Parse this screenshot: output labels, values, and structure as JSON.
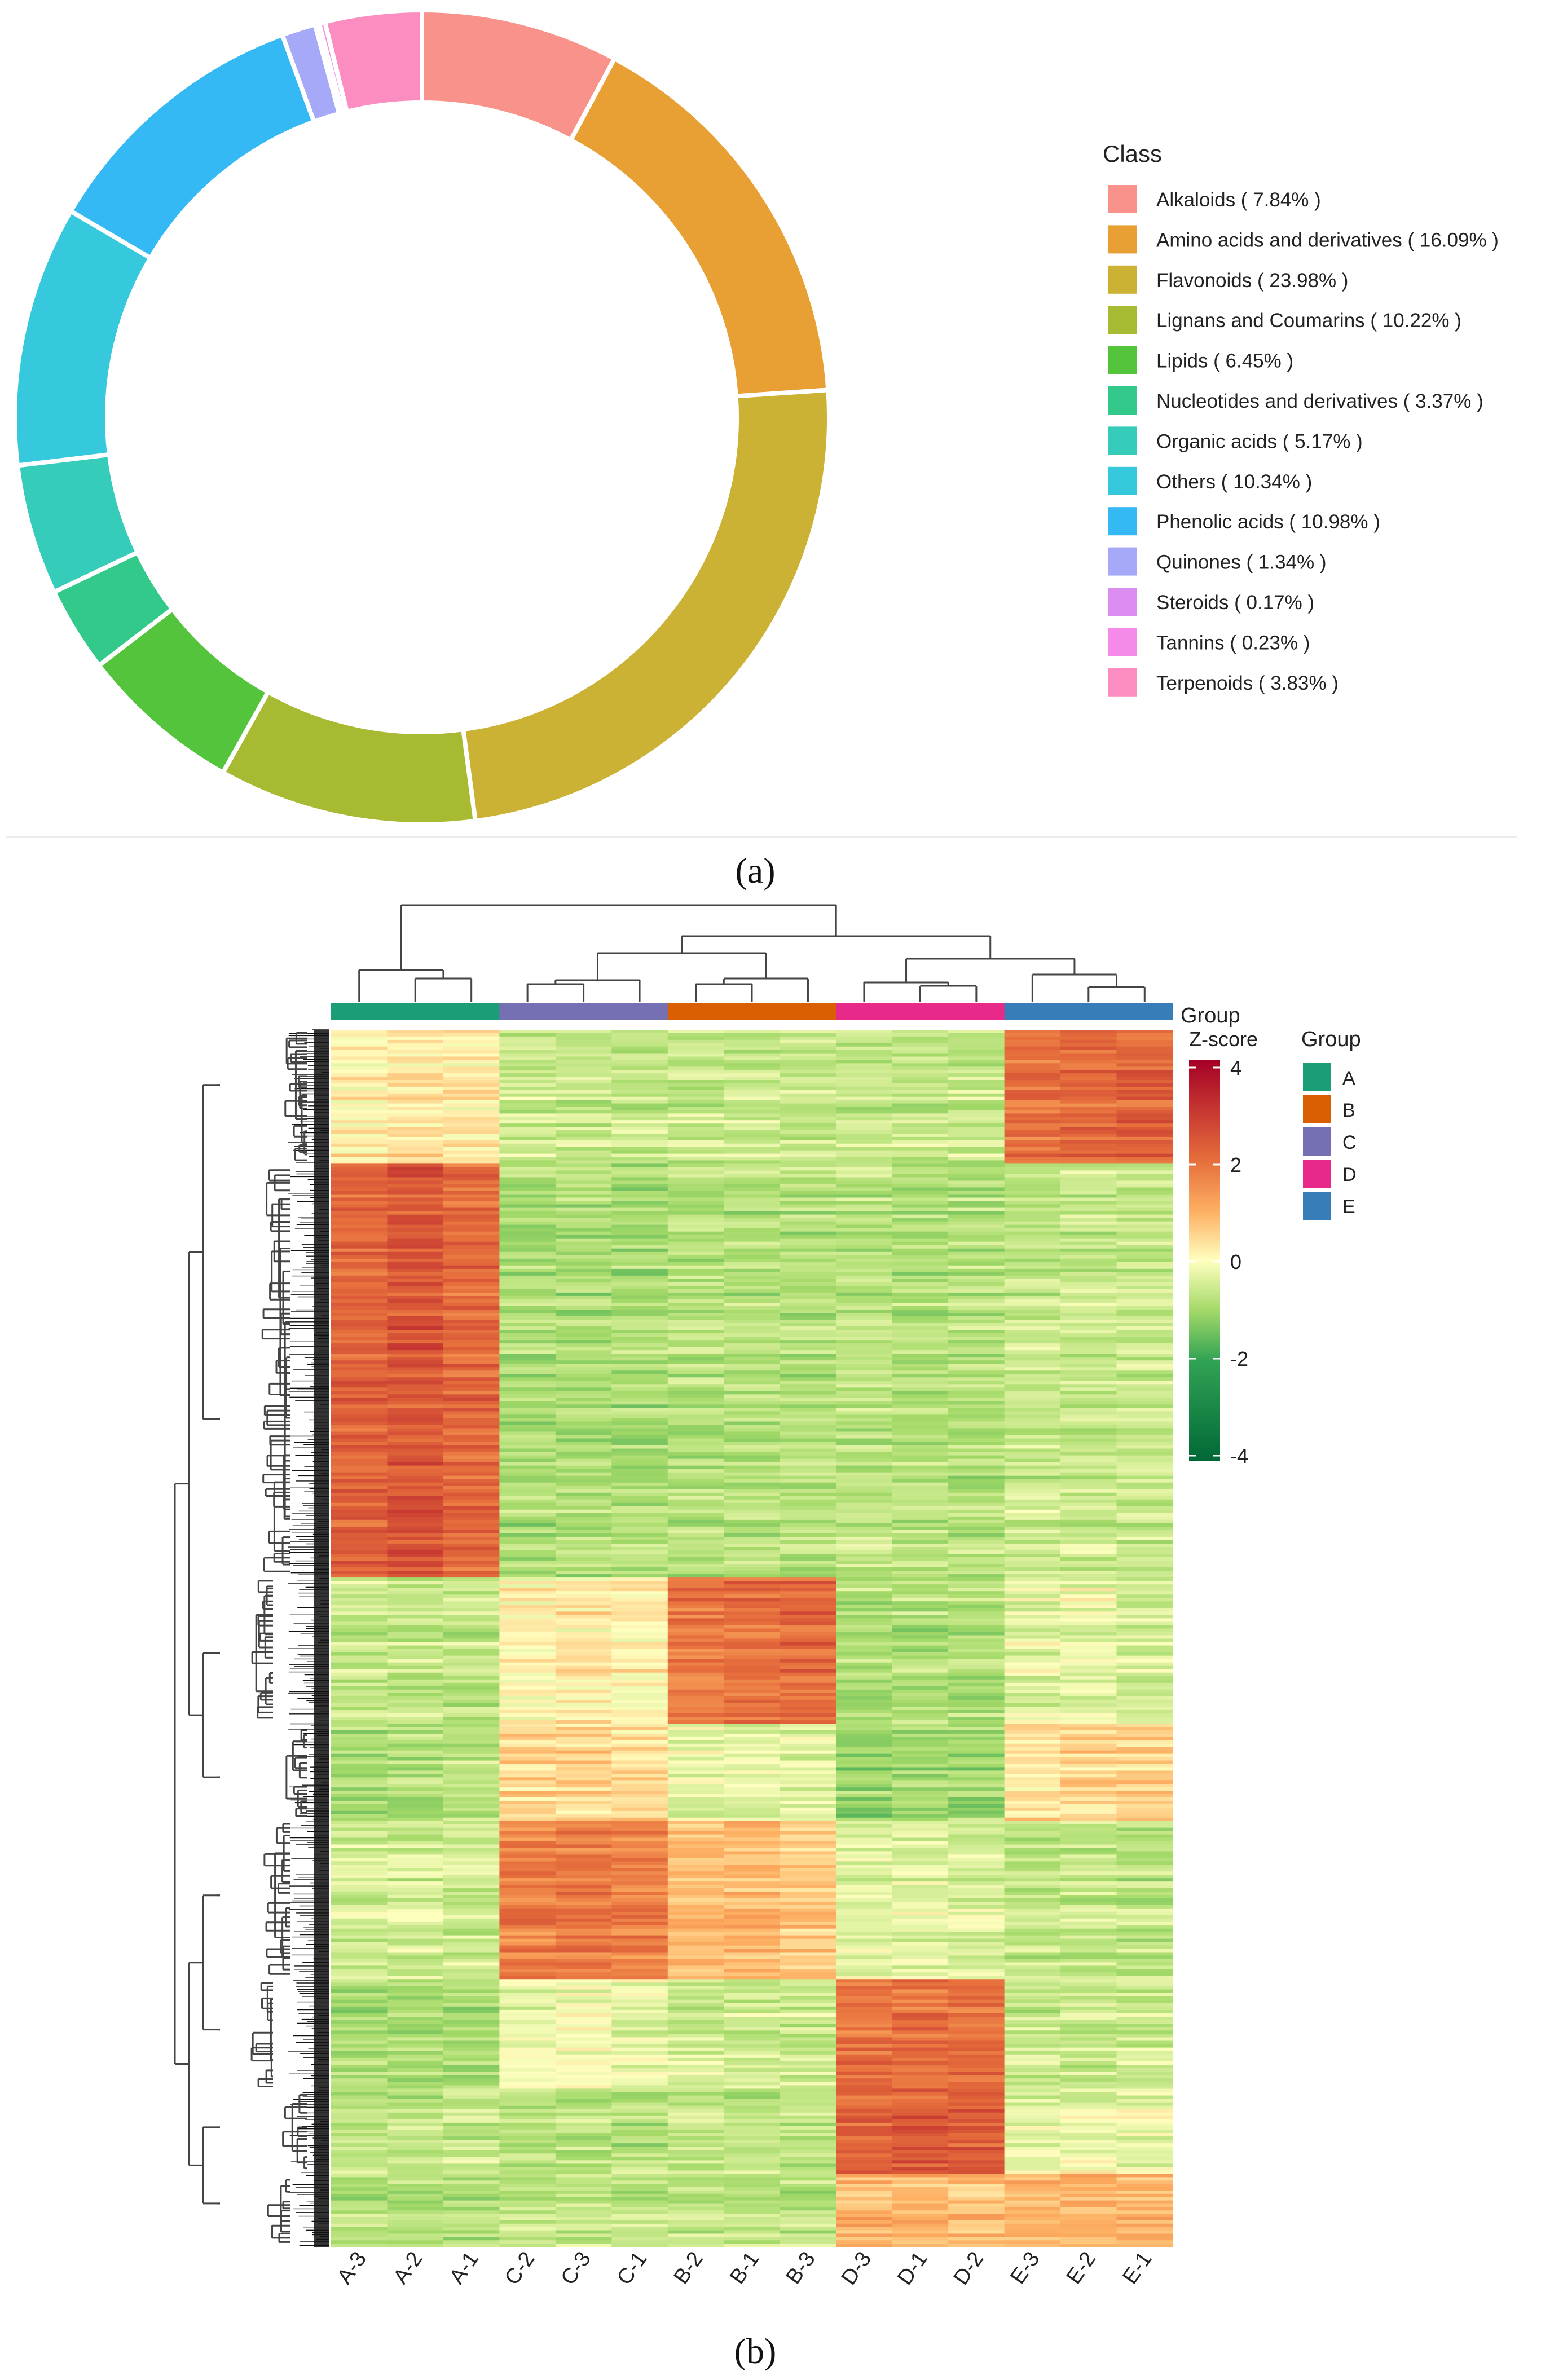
{
  "panel_a_label": "(a)",
  "panel_b_label": "(b)",
  "chart_data": [
    {
      "type": "pie",
      "style": "donut",
      "legend_title": "Class",
      "legend_position": "right",
      "slices": [
        {
          "label": "Alkaloids ( 7.84% )",
          "name": "Alkaloids",
          "value": 7.84,
          "color": "#F8928A"
        },
        {
          "label": "Amino acids and derivatives ( 16.09% )",
          "name": "Amino acids and derivatives",
          "value": 16.09,
          "color": "#E8A035"
        },
        {
          "label": "Flavonoids ( 23.98% )",
          "name": "Flavonoids",
          "value": 23.98,
          "color": "#CBB134"
        },
        {
          "label": "Lignans and Coumarins ( 10.22% )",
          "name": "Lignans and Coumarins",
          "value": 10.22,
          "color": "#A8BA32"
        },
        {
          "label": "Lipids ( 6.45% )",
          "name": "Lipids",
          "value": 6.45,
          "color": "#53C43B"
        },
        {
          "label": "Nucleotides and derivatives ( 3.37% )",
          "name": "Nucleotides and derivatives",
          "value": 3.37,
          "color": "#33C98A"
        },
        {
          "label": "Organic acids ( 5.17% )",
          "name": "Organic acids",
          "value": 5.17,
          "color": "#35CCBA"
        },
        {
          "label": "Others ( 10.34% )",
          "name": "Others",
          "value": 10.34,
          "color": "#36C9DE"
        },
        {
          "label": "Phenolic acids ( 10.98% )",
          "name": "Phenolic acids",
          "value": 10.98,
          "color": "#34B9F5"
        },
        {
          "label": "Quinones ( 1.34% )",
          "name": "Quinones",
          "value": 1.34,
          "color": "#A6A9F7"
        },
        {
          "label": "Steroids ( 0.17% )",
          "name": "Steroids",
          "value": 0.17,
          "color": "#DA8CF0"
        },
        {
          "label": "Tannins ( 0.23% )",
          "name": "Tannins",
          "value": 0.23,
          "color": "#F58AE8"
        },
        {
          "label": "Terpenoids ( 3.83% )",
          "name": "Terpenoids",
          "value": 3.83,
          "color": "#FB8DC0"
        }
      ]
    },
    {
      "type": "heatmap",
      "title": "",
      "annotation_label": "Group",
      "columns": [
        "A-3",
        "A-2",
        "A-1",
        "C-2",
        "C-3",
        "C-1",
        "B-2",
        "B-1",
        "B-3",
        "D-3",
        "D-1",
        "D-2",
        "E-3",
        "E-2",
        "E-1"
      ],
      "column_groups": [
        "A",
        "A",
        "A",
        "C",
        "C",
        "C",
        "B",
        "B",
        "B",
        "D",
        "D",
        "D",
        "E",
        "E",
        "E"
      ],
      "colorbar": {
        "title": "Z-score",
        "ticks": [
          "4",
          "2",
          "0",
          "-2",
          "-4"
        ],
        "range": [
          -4,
          4
        ]
      },
      "legend": {
        "title": "Group",
        "items": [
          {
            "label": "A",
            "color": "#1B9E77"
          },
          {
            "label": "B",
            "color": "#D95F02"
          },
          {
            "label": "C",
            "color": "#7570B3"
          },
          {
            "label": "D",
            "color": "#E7298A"
          },
          {
            "label": "E",
            "color": "#377EB8"
          }
        ]
      },
      "row_clusters": [
        {
          "profile": [
            0.2,
            0.3,
            0.2,
            -0.6,
            -0.6,
            -0.6,
            -0.6,
            -0.6,
            -0.6,
            -0.6,
            -0.6,
            -0.6,
            2.0,
            2.1,
            2.2
          ],
          "weight": 0.11
        },
        {
          "profile": [
            2.2,
            2.4,
            2.1,
            -0.9,
            -0.9,
            -0.9,
            -0.8,
            -0.8,
            -0.8,
            -0.7,
            -0.8,
            -0.8,
            -0.6,
            -0.6,
            -0.6
          ],
          "weight": 0.34
        },
        {
          "profile": [
            -0.6,
            -0.6,
            -0.6,
            0.2,
            0.3,
            0.2,
            1.9,
            2.0,
            2.1,
            -0.8,
            -0.8,
            -0.8,
            -0.3,
            -0.2,
            -0.4
          ],
          "weight": 0.12
        },
        {
          "profile": [
            -0.9,
            -0.8,
            -0.8,
            0.5,
            0.5,
            0.4,
            -0.3,
            -0.3,
            -0.3,
            -1.1,
            -1.0,
            -1.0,
            0.4,
            0.5,
            0.5
          ],
          "weight": 0.08
        },
        {
          "profile": [
            -0.5,
            -0.5,
            -0.5,
            1.7,
            1.8,
            1.7,
            0.8,
            0.9,
            0.7,
            -0.3,
            -0.3,
            -0.4,
            -0.7,
            -0.6,
            -0.7
          ],
          "weight": 0.13
        },
        {
          "profile": [
            -0.9,
            -0.9,
            -0.9,
            -0.2,
            -0.1,
            -0.2,
            -0.5,
            -0.5,
            -0.5,
            1.9,
            2.0,
            2.0,
            -0.6,
            -0.6,
            -0.6
          ],
          "weight": 0.09
        },
        {
          "profile": [
            -0.7,
            -0.7,
            -0.6,
            -0.8,
            -0.8,
            -0.8,
            -0.7,
            -0.7,
            -0.7,
            2.1,
            2.3,
            2.3,
            -0.3,
            -0.2,
            -0.2
          ],
          "weight": 0.07
        },
        {
          "profile": [
            -0.8,
            -0.8,
            -0.8,
            -0.6,
            -0.6,
            -0.6,
            -0.7,
            -0.7,
            -0.7,
            0.9,
            0.9,
            0.8,
            0.9,
            1.0,
            1.0
          ],
          "weight": 0.06
        }
      ]
    }
  ]
}
